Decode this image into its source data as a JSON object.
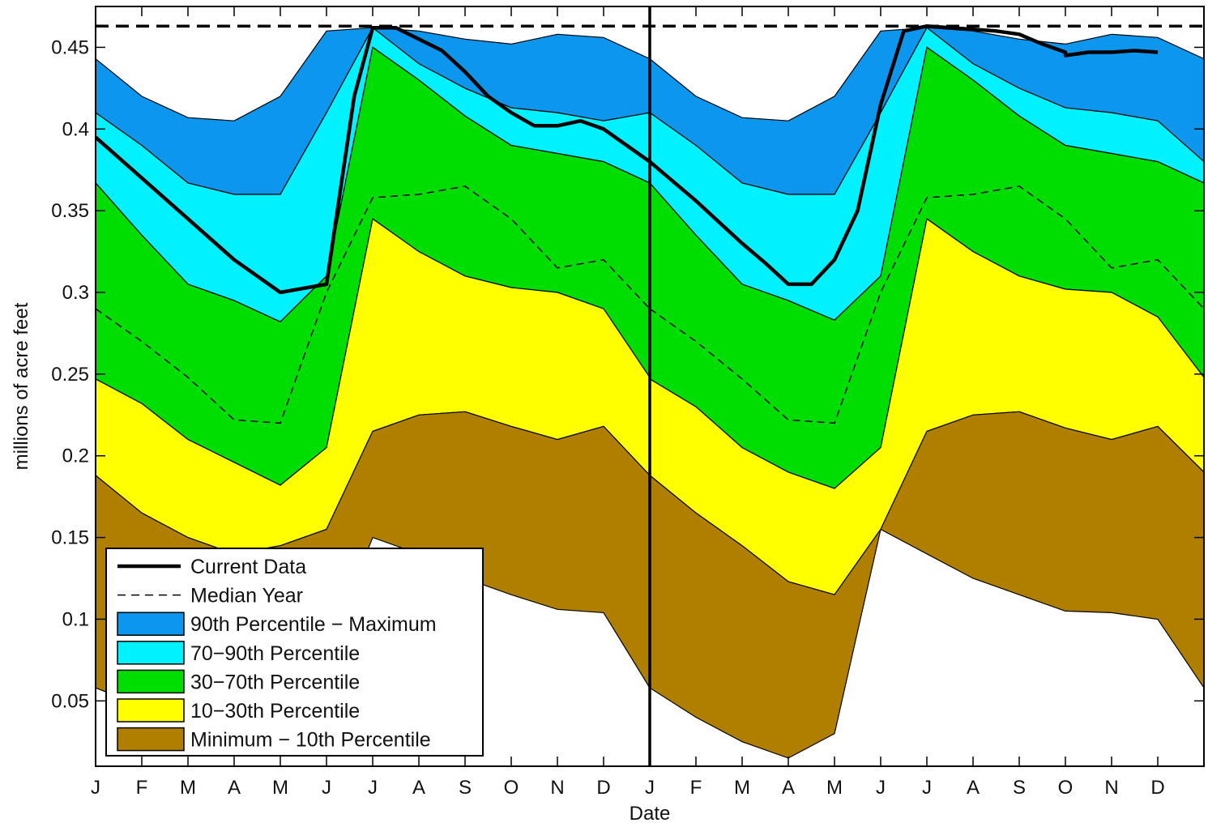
{
  "chart_data": {
    "type": "area",
    "xlabel": "Date",
    "ylabel": "millions of acre feet",
    "ylim": [
      0.01,
      0.475
    ],
    "x_tick_labels": [
      "J",
      "F",
      "M",
      "A",
      "M",
      "J",
      "J",
      "A",
      "S",
      "O",
      "N",
      "D",
      "J",
      "F",
      "M",
      "A",
      "M",
      "J",
      "J",
      "A",
      "S",
      "O",
      "N",
      "D"
    ],
    "y_ticks": [
      0.05,
      0.1,
      0.15,
      0.2,
      0.25,
      0.3,
      0.35,
      0.4,
      0.45
    ],
    "y_tick_labels": [
      "0.05",
      "0.1",
      "0.15",
      "0.2",
      "0.25",
      "0.3",
      "0.35",
      "0.4",
      "0.45"
    ],
    "x_months": [
      0,
      1,
      2,
      3,
      4,
      5,
      6,
      7,
      8,
      9,
      10,
      11,
      12,
      13,
      14,
      15,
      16,
      17,
      18,
      19,
      20,
      21,
      22,
      23,
      24
    ],
    "capacity_line": 0.463,
    "divider_month": 12,
    "bands_year1": {
      "min": [
        0.058,
        0.047,
        0.03,
        0.017,
        0.02,
        0.08,
        0.15,
        0.14,
        0.125,
        0.115,
        0.106,
        0.104,
        0.058
      ],
      "p10": [
        0.188,
        0.165,
        0.15,
        0.14,
        0.145,
        0.155,
        0.215,
        0.225,
        0.227,
        0.218,
        0.21,
        0.218,
        0.188
      ],
      "p30": [
        0.247,
        0.232,
        0.21,
        0.196,
        0.182,
        0.205,
        0.345,
        0.325,
        0.31,
        0.303,
        0.3,
        0.29,
        0.248
      ],
      "p70": [
        0.367,
        0.335,
        0.305,
        0.295,
        0.282,
        0.31,
        0.45,
        0.43,
        0.408,
        0.39,
        0.385,
        0.38,
        0.367
      ],
      "p90": [
        0.41,
        0.39,
        0.367,
        0.36,
        0.36,
        0.41,
        0.462,
        0.44,
        0.425,
        0.413,
        0.41,
        0.405,
        0.41
      ],
      "max": [
        0.443,
        0.42,
        0.407,
        0.405,
        0.42,
        0.46,
        0.462,
        0.46,
        0.455,
        0.452,
        0.458,
        0.456,
        0.443
      ]
    },
    "bands_year2": {
      "min": [
        0.058,
        0.04,
        0.025,
        0.015,
        0.03,
        0.155,
        0.14,
        0.125,
        0.115,
        0.105,
        0.104,
        0.1,
        0.058
      ],
      "p10": [
        0.188,
        0.165,
        0.145,
        0.123,
        0.115,
        0.155,
        0.215,
        0.225,
        0.227,
        0.217,
        0.21,
        0.218,
        0.19
      ],
      "p30": [
        0.247,
        0.23,
        0.205,
        0.19,
        0.18,
        0.205,
        0.345,
        0.325,
        0.31,
        0.302,
        0.3,
        0.285,
        0.248
      ],
      "p70": [
        0.367,
        0.335,
        0.305,
        0.295,
        0.283,
        0.31,
        0.45,
        0.43,
        0.408,
        0.39,
        0.385,
        0.38,
        0.367
      ],
      "p90": [
        0.41,
        0.39,
        0.367,
        0.36,
        0.36,
        0.41,
        0.462,
        0.44,
        0.425,
        0.413,
        0.41,
        0.405,
        0.38
      ],
      "max": [
        0.443,
        0.42,
        0.407,
        0.405,
        0.42,
        0.46,
        0.462,
        0.46,
        0.455,
        0.452,
        0.458,
        0.456,
        0.443
      ]
    },
    "median_year1": [
      0.29,
      0.27,
      0.248,
      0.222,
      0.22,
      0.3,
      0.358,
      0.36,
      0.365,
      0.345,
      0.315,
      0.32,
      0.29
    ],
    "median_year2": [
      0.29,
      0.27,
      0.247,
      0.222,
      0.22,
      0.3,
      0.358,
      0.36,
      0.365,
      0.345,
      0.315,
      0.32,
      0.29
    ],
    "current_x": [
      0,
      1,
      2,
      3,
      4,
      5,
      5.6,
      6,
      6.5,
      7,
      7.5,
      8,
      8.5,
      9,
      9.5,
      10,
      10.5,
      11,
      11.5,
      12,
      12.5,
      13,
      13.5,
      14,
      14.5,
      15,
      15.5,
      16,
      16.5,
      17,
      17.5,
      18,
      18.5,
      19,
      19.5,
      20,
      20.5,
      21,
      21,
      21.5,
      22,
      22.5,
      23
    ],
    "current_y": [
      0.395,
      0.37,
      0.345,
      0.32,
      0.3,
      0.305,
      0.42,
      0.462,
      0.462,
      0.455,
      0.448,
      0.435,
      0.42,
      0.41,
      0.402,
      0.402,
      0.405,
      0.4,
      0.39,
      0.38,
      0.368,
      0.356,
      0.343,
      0.33,
      0.318,
      0.305,
      0.305,
      0.32,
      0.35,
      0.415,
      0.46,
      0.463,
      0.462,
      0.461,
      0.46,
      0.458,
      0.452,
      0.447,
      0.445,
      0.447,
      0.447,
      0.448,
      0.447
    ],
    "series": [
      {
        "name": "Current Data",
        "style": "solid-thick",
        "color": "#000000"
      },
      {
        "name": "Median Year",
        "style": "dashed",
        "color": "#000000"
      },
      {
        "name": "90th Percentile − Maximum",
        "color": "#0d96ee"
      },
      {
        "name": "70−90th Percentile",
        "color": "#00f2ff"
      },
      {
        "name": "30−70th Percentile",
        "color": "#00dd00"
      },
      {
        "name": "10−30th Percentile",
        "color": "#ffff00"
      },
      {
        "name": "Minimum − 10th Percentile",
        "color": "#b07f00"
      }
    ],
    "legend_position": "bottom-left",
    "grid": false
  }
}
